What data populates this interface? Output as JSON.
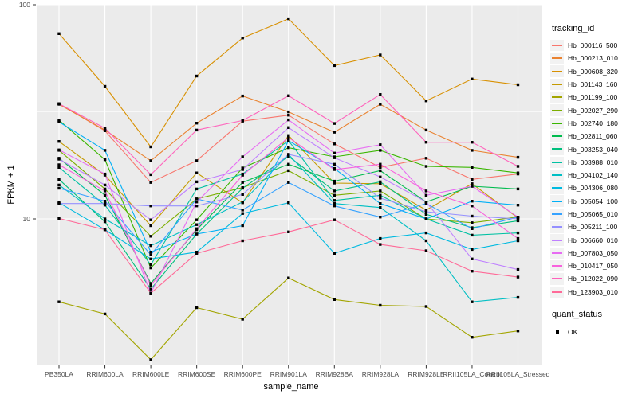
{
  "figure": {
    "xlabel": "sample_name",
    "ylabel": "FPKM + 1"
  },
  "chart_data": {
    "type": "line",
    "title": "",
    "xlabel": "sample_name",
    "ylabel": "FPKM + 1",
    "y_scale": "log10",
    "ylim": [
      2.1,
      103
    ],
    "y_ticks": [
      "100",
      "10"
    ],
    "y_tick_values": [
      100,
      10
    ],
    "y_minor_tick_values": [
      31.6,
      3.16
    ],
    "grid": "on",
    "panel_bg": "#EBEBEB",
    "grid_color": "#FFFFFF",
    "tick_label_color": "#4D4D4D",
    "point_color": "#000000",
    "point_shape": "square",
    "legend_position": "right",
    "legend_title": "tracking_id",
    "legend2_title": "quant_status",
    "legend2_items": [
      {
        "label": "OK"
      }
    ],
    "categories": [
      "PB350LA",
      "RRIM600LA",
      "RRIM600LE",
      "RRIM600SE",
      "RRIM600PE",
      "RRIM901LA",
      "RRIM928BA",
      "RRIM928LA",
      "RRIM928LE",
      "RRII105LA_Control",
      "RRII105LA_Stressed"
    ],
    "series": [
      {
        "name": "Hb_000116_500",
        "color": "#F8766D",
        "values": [
          34.5,
          25.8,
          14.8,
          18.7,
          28.6,
          30.5,
          22.4,
          17.4,
          19.2,
          15.3,
          16.2
        ]
      },
      {
        "name": "Hb_000213_010",
        "color": "#EA8331",
        "values": [
          34.3,
          26.0,
          18.7,
          28.0,
          37.5,
          31.6,
          25.4,
          34.3,
          26.0,
          20.9,
          19.4
        ]
      },
      {
        "name": "Hb_000608_320",
        "color": "#D89000",
        "values": [
          73.3,
          41.6,
          21.7,
          46.5,
          70.0,
          86.0,
          52.0,
          58.3,
          35.6,
          45.0,
          42.3
        ]
      },
      {
        "name": "Hb_001143_160",
        "color": "#C49A00",
        "values": [
          23.0,
          16.0,
          9.3,
          16.4,
          11.9,
          24.5,
          14.7,
          14.6,
          11.0,
          14.6,
          10.1
        ]
      },
      {
        "name": "Hb_001199_100",
        "color": "#A3A500",
        "values": [
          4.1,
          3.6,
          2.2,
          3.85,
          3.4,
          5.3,
          4.2,
          3.95,
          3.9,
          2.8,
          3.0
        ]
      },
      {
        "name": "Hb_002027_290",
        "color": "#7CAE00",
        "values": [
          20.9,
          13.8,
          8.3,
          12.4,
          14.0,
          16.8,
          12.9,
          13.5,
          10.0,
          9.6,
          10.2
        ]
      },
      {
        "name": "Hb_002740_180",
        "color": "#39B600",
        "values": [
          28.9,
          18.9,
          5.9,
          9.9,
          17.3,
          21.5,
          19.5,
          20.9,
          17.6,
          17.4,
          16.4
        ]
      },
      {
        "name": "Hb_002811_060",
        "color": "#00BB4E",
        "values": [
          19.2,
          12.9,
          5.0,
          8.9,
          14.8,
          18.0,
          15.0,
          16.8,
          12.0,
          14.2,
          13.8
        ]
      },
      {
        "name": "Hb_003253_040",
        "color": "#00BF7D",
        "values": [
          15.3,
          9.7,
          4.7,
          8.5,
          13.9,
          19.6,
          13.5,
          14.9,
          10.5,
          9.1,
          9.8
        ]
      },
      {
        "name": "Hb_003988_010",
        "color": "#00C1A3",
        "values": [
          17.4,
          11.6,
          6.1,
          13.8,
          16.2,
          23.2,
          12.2,
          12.9,
          10.0,
          8.4,
          8.6
        ]
      },
      {
        "name": "Hb_004102_140",
        "color": "#00BFC4",
        "values": [
          14.4,
          10.0,
          7.5,
          9.4,
          12.0,
          20.0,
          11.8,
          11.3,
          7.9,
          4.1,
          4.3
        ]
      },
      {
        "name": "Hb_004306_080",
        "color": "#00BAE0",
        "values": [
          11.9,
          8.9,
          6.5,
          7.0,
          10.6,
          11.9,
          6.9,
          8.1,
          8.6,
          7.2,
          7.9
        ]
      },
      {
        "name": "Hb_005054_100",
        "color": "#00B0F6",
        "values": [
          28.4,
          20.9,
          7.0,
          8.5,
          9.3,
          23.2,
          17.2,
          11.8,
          10.0,
          12.1,
          11.6
        ]
      },
      {
        "name": "Hb_005065_010",
        "color": "#35A2FF",
        "values": [
          13.9,
          12.1,
          6.8,
          12.4,
          11.0,
          14.8,
          11.5,
          10.2,
          11.8,
          9.0,
          10.2
        ]
      },
      {
        "name": "Hb_005211_100",
        "color": "#9590FF",
        "values": [
          11.8,
          11.8,
          11.5,
          11.5,
          13.0,
          20.0,
          18.0,
          12.5,
          10.8,
          10.3,
          10.0
        ]
      },
      {
        "name": "Hb_006660_010",
        "color": "#BF80FF",
        "values": [
          19.0,
          14.4,
          9.9,
          14.9,
          17.0,
          26.7,
          19.3,
          15.7,
          12.0,
          6.5,
          5.8
        ]
      },
      {
        "name": "Hb_007803_050",
        "color": "#E76BF3",
        "values": [
          21.0,
          16.2,
          4.5,
          12.0,
          19.5,
          29.0,
          20.3,
          22.2,
          12.9,
          14.2,
          10.2
        ]
      },
      {
        "name": "Hb_010417_050",
        "color": "#F862DD",
        "values": [
          17.9,
          13.5,
          4.9,
          9.0,
          16.0,
          24.0,
          17.0,
          18.0,
          13.5,
          11.5,
          8.1
        ]
      },
      {
        "name": "Hb_012022_090",
        "color": "#FF62BC",
        "values": [
          34.5,
          26.5,
          16.1,
          26.0,
          28.8,
          37.6,
          27.9,
          38.1,
          22.8,
          22.8,
          17.6
        ]
      },
      {
        "name": "Hb_123903_010",
        "color": "#FF6A98",
        "values": [
          10.05,
          8.9,
          4.5,
          6.9,
          7.9,
          8.7,
          9.9,
          7.6,
          7.1,
          5.7,
          5.35
        ]
      }
    ]
  }
}
